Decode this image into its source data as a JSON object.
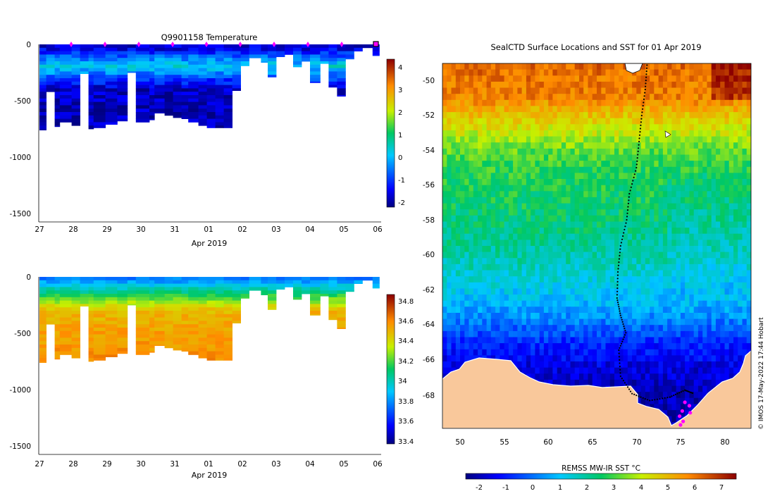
{
  "temperature_section": {
    "title": "Q9901158  Temperature",
    "xlabel": "Apr 2019",
    "x_ticks": [
      "27",
      "28",
      "29",
      "30",
      "31",
      "01",
      "02",
      "03",
      "04",
      "05",
      "06"
    ],
    "y_ticks": [
      "0",
      "-500",
      "-1000",
      "-1500"
    ],
    "colorbar_ticks": [
      "4",
      "3",
      "2",
      "1",
      "0",
      "-1",
      "-2"
    ]
  },
  "salinity_section": {
    "xlabel": "Apr 2019",
    "x_ticks": [
      "27",
      "28",
      "29",
      "30",
      "31",
      "01",
      "02",
      "03",
      "04",
      "05",
      "06"
    ],
    "y_ticks": [
      "0",
      "-500",
      "-1000",
      "-1500"
    ],
    "colorbar_ticks": [
      "34.8",
      "34.6",
      "34.4",
      "34.2",
      "34",
      "33.8",
      "33.6",
      "33.4"
    ]
  },
  "map": {
    "title": "SealCTD Surface Locations and SST for 01 Apr 2019",
    "lat_ticks": [
      "-50",
      "-52",
      "-54",
      "-56",
      "-58",
      "-60",
      "-62",
      "-64",
      "-66",
      "-68"
    ],
    "lon_ticks": [
      "50",
      "55",
      "60",
      "65",
      "70",
      "75",
      "80"
    ],
    "colorbar_label": "REMSS MW-IR SST °C",
    "colorbar_ticks": [
      "-2",
      "-1",
      "0",
      "1",
      "2",
      "3",
      "4",
      "5",
      "6",
      "7"
    ]
  },
  "credit": "© IMOS 17-May-2022 17:44 Hobart",
  "chart_data": [
    {
      "type": "heatmap",
      "title": "Q9901158  Temperature",
      "xlabel": "Apr 2019",
      "ylabel": "",
      "x_range_days": [
        0,
        10
      ],
      "x_tick_labels": [
        "27",
        "28",
        "29",
        "30",
        "31",
        "01",
        "02",
        "03",
        "04",
        "05",
        "06"
      ],
      "ylim": [
        -1600,
        0
      ],
      "colorbar": {
        "min": -2.3,
        "max": 4.3,
        "ticks": [
          4,
          3,
          2,
          1,
          0,
          -1,
          -2
        ]
      },
      "profile_days": [
        0,
        0.2,
        0.45,
        0.6,
        0.95,
        1.2,
        1.45,
        1.6,
        1.95,
        2.3,
        2.6,
        2.85,
        3.25,
        3.4,
        3.7,
        3.95,
        4.2,
        4.4,
        4.7,
        4.95,
        5.2,
        5.45,
        5.7,
        5.95,
        6.2,
        6.55,
        6.75,
        7.0,
        7.25,
        7.5,
        7.75,
        8.0,
        8.3,
        8.55,
        8.8,
        9.05,
        9.3,
        9.55,
        9.85,
        10.05
      ],
      "max_depths_m": [
        -760,
        -420,
        -730,
        -690,
        -720,
        -260,
        -750,
        -740,
        -710,
        -680,
        -250,
        -690,
        -670,
        -610,
        -630,
        -650,
        -660,
        -690,
        -720,
        -740,
        -740,
        -740,
        -410,
        -190,
        -120,
        -160,
        -290,
        -110,
        -90,
        -200,
        -150,
        -340,
        -170,
        -380,
        -460,
        -130,
        -60,
        -30,
        -100,
        -40
      ],
      "temperature_levels_C": [
        {
          "depth_m": 0,
          "value": -1.8
        },
        {
          "depth_m": -50,
          "value": -1.6
        },
        {
          "depth_m": -120,
          "value": -0.6
        },
        {
          "depth_m": -200,
          "value": 0.2
        },
        {
          "depth_m": -300,
          "value": -1.0
        },
        {
          "depth_m": -400,
          "value": -1.9
        },
        {
          "depth_m": -760,
          "value": -2.0
        }
      ],
      "surface_fix_days": [
        1,
        2,
        3,
        4,
        5,
        6,
        7,
        8,
        9,
        10
      ]
    },
    {
      "type": "heatmap",
      "title": "",
      "variable": "salinity",
      "xlabel": "Apr 2019",
      "ylabel": "",
      "x_range_days": [
        0,
        10
      ],
      "x_tick_labels": [
        "27",
        "28",
        "29",
        "30",
        "31",
        "01",
        "02",
        "03",
        "04",
        "05",
        "06"
      ],
      "ylim": [
        -1600,
        0
      ],
      "colorbar": {
        "min": 33.38,
        "max": 34.88,
        "ticks": [
          34.8,
          34.6,
          34.4,
          34.2,
          34,
          33.8,
          33.6,
          33.4
        ]
      },
      "salinity_levels": [
        {
          "depth_m": 0,
          "value": 33.75
        },
        {
          "depth_m": -50,
          "value": 33.85
        },
        {
          "depth_m": -120,
          "value": 34.05
        },
        {
          "depth_m": -200,
          "value": 34.25
        },
        {
          "depth_m": -300,
          "value": 34.5
        },
        {
          "depth_m": -500,
          "value": 34.56
        },
        {
          "depth_m": -760,
          "value": 34.6
        }
      ]
    },
    {
      "type": "heatmap",
      "title": "SealCTD Surface Locations and SST for 01 Apr 2019",
      "xlabel": "",
      "ylabel": "",
      "xlim": [
        48,
        83
      ],
      "ylim": [
        -70,
        -49
      ],
      "colorbar": {
        "label": "REMSS MW-IR SST °C",
        "min": -2.5,
        "max": 7.5,
        "ticks": [
          -2,
          -1,
          0,
          1,
          2,
          3,
          4,
          5,
          6,
          7
        ]
      },
      "sst_by_latitude": [
        {
          "lat": -49,
          "sst": 6.2
        },
        {
          "lat": -51,
          "sst": 5.8
        },
        {
          "lat": -52,
          "sst": 4.8
        },
        {
          "lat": -53,
          "sst": 4.0
        },
        {
          "lat": -54,
          "sst": 3.2
        },
        {
          "lat": -55,
          "sst": 2.8
        },
        {
          "lat": -57,
          "sst": 2.5
        },
        {
          "lat": -60,
          "sst": 1.9
        },
        {
          "lat": -62,
          "sst": 1.2
        },
        {
          "lat": -63.5,
          "sst": 0.4
        },
        {
          "lat": -65,
          "sst": -0.8
        },
        {
          "lat": -66.5,
          "sst": -1.6
        },
        {
          "lat": -68,
          "sst": -2.0
        }
      ],
      "track": [
        {
          "lon": 71.2,
          "lat": -49.1
        },
        {
          "lon": 71.0,
          "lat": -50.5
        },
        {
          "lon": 70.6,
          "lat": -52.0
        },
        {
          "lon": 70.3,
          "lat": -53.5
        },
        {
          "lon": 70.0,
          "lat": -55.0
        },
        {
          "lon": 69.2,
          "lat": -56.5
        },
        {
          "lon": 68.9,
          "lat": -58.0
        },
        {
          "lon": 68.2,
          "lat": -59.5
        },
        {
          "lon": 67.9,
          "lat": -61.0
        },
        {
          "lon": 67.8,
          "lat": -62.5
        },
        {
          "lon": 68.2,
          "lat": -63.5
        },
        {
          "lon": 68.8,
          "lat": -64.5
        },
        {
          "lon": 68.0,
          "lat": -65.5
        },
        {
          "lon": 68.2,
          "lat": -67.0
        },
        {
          "lon": 69.5,
          "lat": -68.0
        },
        {
          "lon": 71.5,
          "lat": -68.4
        },
        {
          "lon": 73.8,
          "lat": -68.2
        },
        {
          "lon": 75.5,
          "lat": -67.8
        },
        {
          "lon": 76.5,
          "lat": -68.0
        }
      ],
      "surface_locations": [
        {
          "lon": 75.5,
          "lat": -68.5
        },
        {
          "lon": 76.0,
          "lat": -68.7
        },
        {
          "lon": 75.2,
          "lat": -69.0
        },
        {
          "lon": 74.9,
          "lat": -69.3
        },
        {
          "lon": 75.3,
          "lat": -69.6
        },
        {
          "lon": 76.1,
          "lat": -69.1
        },
        {
          "lon": 75.0,
          "lat": -69.8
        }
      ]
    }
  ]
}
